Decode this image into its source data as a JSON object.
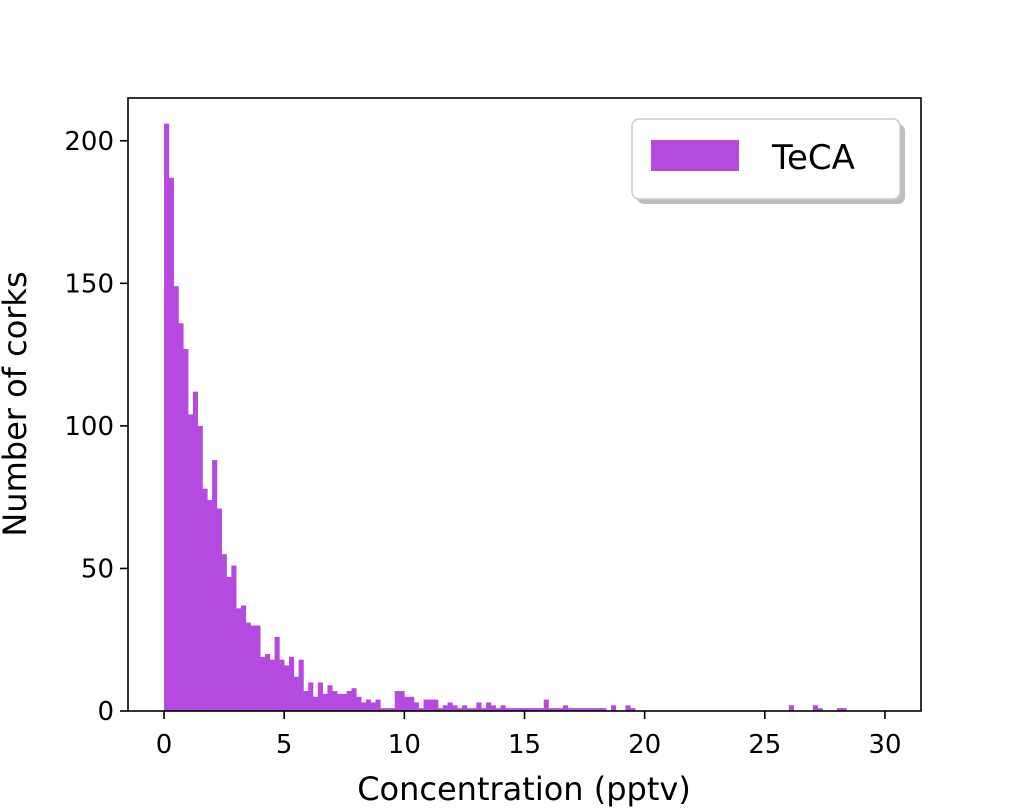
{
  "chart_data": {
    "type": "bar",
    "title": "",
    "xlabel": "Concentration (pptv)",
    "ylabel": "Number of corks",
    "xlim": [
      -1.5,
      31.5
    ],
    "ylim": [
      0,
      215
    ],
    "xticks": [
      0,
      5,
      10,
      15,
      20,
      25,
      30
    ],
    "yticks": [
      0,
      50,
      100,
      150,
      200
    ],
    "grid": false,
    "legend": {
      "position": "top-right",
      "entries": [
        "TeCA"
      ]
    },
    "bar_color": "#b44ae0",
    "bin_width": 0.2,
    "series": [
      {
        "name": "TeCA",
        "bins": [
          {
            "x0": 0.0,
            "count": 206
          },
          {
            "x0": 0.2,
            "count": 187
          },
          {
            "x0": 0.4,
            "count": 149
          },
          {
            "x0": 0.6,
            "count": 136
          },
          {
            "x0": 0.8,
            "count": 127
          },
          {
            "x0": 1.0,
            "count": 104
          },
          {
            "x0": 1.2,
            "count": 112
          },
          {
            "x0": 1.4,
            "count": 100
          },
          {
            "x0": 1.6,
            "count": 78
          },
          {
            "x0": 1.8,
            "count": 74
          },
          {
            "x0": 2.0,
            "count": 88
          },
          {
            "x0": 2.2,
            "count": 71
          },
          {
            "x0": 2.4,
            "count": 55
          },
          {
            "x0": 2.6,
            "count": 47
          },
          {
            "x0": 2.8,
            "count": 51
          },
          {
            "x0": 3.0,
            "count": 36
          },
          {
            "x0": 3.2,
            "count": 37
          },
          {
            "x0": 3.4,
            "count": 31
          },
          {
            "x0": 3.6,
            "count": 30
          },
          {
            "x0": 3.8,
            "count": 30
          },
          {
            "x0": 4.0,
            "count": 19
          },
          {
            "x0": 4.2,
            "count": 20
          },
          {
            "x0": 4.4,
            "count": 18
          },
          {
            "x0": 4.6,
            "count": 26
          },
          {
            "x0": 4.8,
            "count": 18
          },
          {
            "x0": 5.0,
            "count": 16
          },
          {
            "x0": 5.2,
            "count": 19
          },
          {
            "x0": 5.4,
            "count": 12
          },
          {
            "x0": 5.6,
            "count": 18
          },
          {
            "x0": 5.8,
            "count": 7
          },
          {
            "x0": 6.0,
            "count": 10
          },
          {
            "x0": 6.2,
            "count": 5
          },
          {
            "x0": 6.4,
            "count": 10
          },
          {
            "x0": 6.6,
            "count": 6
          },
          {
            "x0": 6.8,
            "count": 9
          },
          {
            "x0": 7.0,
            "count": 7
          },
          {
            "x0": 7.2,
            "count": 6
          },
          {
            "x0": 7.4,
            "count": 6
          },
          {
            "x0": 7.6,
            "count": 7
          },
          {
            "x0": 7.8,
            "count": 8
          },
          {
            "x0": 8.0,
            "count": 5
          },
          {
            "x0": 8.2,
            "count": 3
          },
          {
            "x0": 8.4,
            "count": 4
          },
          {
            "x0": 8.6,
            "count": 3
          },
          {
            "x0": 8.8,
            "count": 4
          },
          {
            "x0": 9.0,
            "count": 1
          },
          {
            "x0": 9.2,
            "count": 1
          },
          {
            "x0": 9.4,
            "count": 1
          },
          {
            "x0": 9.6,
            "count": 7
          },
          {
            "x0": 9.8,
            "count": 7
          },
          {
            "x0": 10.0,
            "count": 5
          },
          {
            "x0": 10.2,
            "count": 5
          },
          {
            "x0": 10.4,
            "count": 3
          },
          {
            "x0": 10.6,
            "count": 1
          },
          {
            "x0": 10.8,
            "count": 4
          },
          {
            "x0": 11.0,
            "count": 4
          },
          {
            "x0": 11.2,
            "count": 4
          },
          {
            "x0": 11.4,
            "count": 1
          },
          {
            "x0": 11.6,
            "count": 2
          },
          {
            "x0": 11.8,
            "count": 3
          },
          {
            "x0": 12.0,
            "count": 2
          },
          {
            "x0": 12.2,
            "count": 1
          },
          {
            "x0": 12.4,
            "count": 2
          },
          {
            "x0": 12.6,
            "count": 1
          },
          {
            "x0": 12.8,
            "count": 1
          },
          {
            "x0": 13.0,
            "count": 3
          },
          {
            "x0": 13.2,
            "count": 1
          },
          {
            "x0": 13.4,
            "count": 3
          },
          {
            "x0": 13.6,
            "count": 2
          },
          {
            "x0": 13.8,
            "count": 1
          },
          {
            "x0": 14.0,
            "count": 2
          },
          {
            "x0": 14.2,
            "count": 1
          },
          {
            "x0": 14.4,
            "count": 1
          },
          {
            "x0": 14.6,
            "count": 1
          },
          {
            "x0": 14.8,
            "count": 1
          },
          {
            "x0": 15.0,
            "count": 1
          },
          {
            "x0": 15.2,
            "count": 1
          },
          {
            "x0": 15.4,
            "count": 1
          },
          {
            "x0": 15.6,
            "count": 1
          },
          {
            "x0": 15.8,
            "count": 4
          },
          {
            "x0": 16.0,
            "count": 1
          },
          {
            "x0": 16.2,
            "count": 1
          },
          {
            "x0": 16.4,
            "count": 1
          },
          {
            "x0": 16.6,
            "count": 2
          },
          {
            "x0": 16.8,
            "count": 1
          },
          {
            "x0": 17.0,
            "count": 1
          },
          {
            "x0": 17.2,
            "count": 1
          },
          {
            "x0": 17.4,
            "count": 1
          },
          {
            "x0": 17.6,
            "count": 1
          },
          {
            "x0": 17.8,
            "count": 1
          },
          {
            "x0": 18.0,
            "count": 1
          },
          {
            "x0": 18.2,
            "count": 1
          },
          {
            "x0": 18.6,
            "count": 2
          },
          {
            "x0": 19.2,
            "count": 2
          },
          {
            "x0": 19.4,
            "count": 1
          },
          {
            "x0": 26.0,
            "count": 2
          },
          {
            "x0": 27.0,
            "count": 2
          },
          {
            "x0": 27.2,
            "count": 1
          },
          {
            "x0": 28.0,
            "count": 1
          },
          {
            "x0": 28.2,
            "count": 1
          }
        ]
      }
    ]
  }
}
